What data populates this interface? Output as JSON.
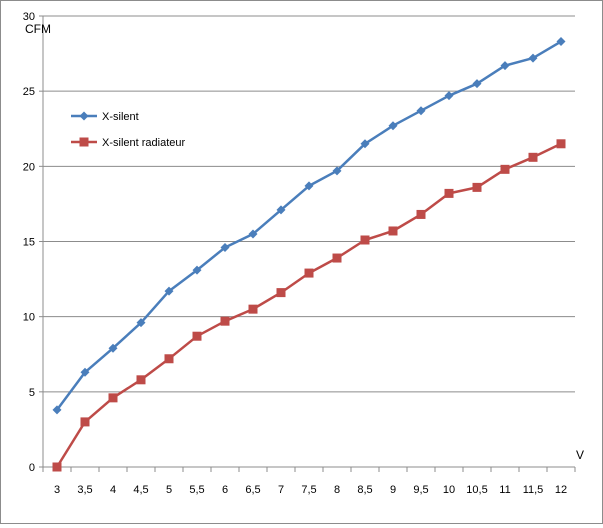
{
  "chart_data": {
    "type": "line",
    "title": "",
    "xlabel": "V",
    "ylabel": "CFM",
    "categories": [
      "3",
      "3,5",
      "4",
      "4,5",
      "5",
      "5,5",
      "6",
      "6,5",
      "7",
      "7,5",
      "8",
      "8,5",
      "9",
      "9,5",
      "10",
      "10,5",
      "11",
      "11,5",
      "12"
    ],
    "ylim": [
      0,
      30
    ],
    "yticks": [
      0,
      5,
      10,
      15,
      20,
      25,
      30
    ],
    "grid": "horizontal",
    "legend_position": "left",
    "series": [
      {
        "name": "X-silent",
        "color": "#4a7ebb",
        "marker": "diamond",
        "values": [
          3.8,
          6.3,
          7.9,
          9.6,
          11.7,
          13.1,
          14.6,
          15.5,
          17.1,
          18.7,
          19.7,
          21.5,
          22.7,
          23.7,
          24.7,
          25.5,
          26.7,
          27.2,
          28.3
        ]
      },
      {
        "name": "X-silent radiateur",
        "color": "#be4b48",
        "marker": "square",
        "values": [
          0.0,
          3.0,
          4.6,
          5.8,
          7.2,
          8.7,
          9.7,
          10.5,
          11.6,
          12.9,
          13.9,
          15.1,
          15.7,
          16.8,
          18.2,
          18.6,
          19.8,
          20.6,
          21.5
        ]
      }
    ]
  }
}
